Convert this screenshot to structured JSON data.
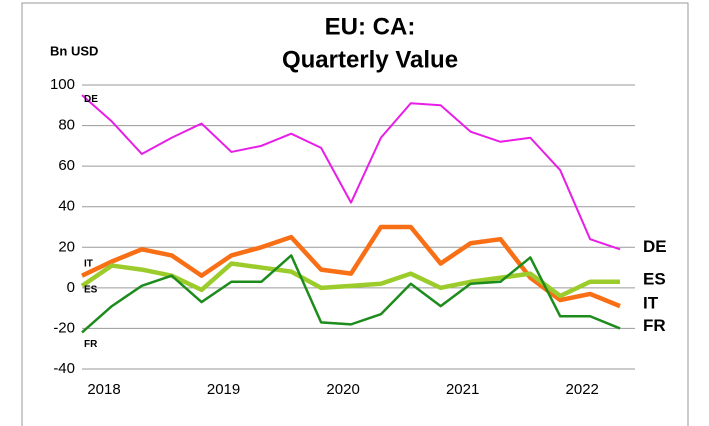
{
  "chart_data": {
    "type": "line",
    "title": [
      "EU: CA:",
      "Quarterly Value"
    ],
    "y_label": "Bn USD",
    "categories": [
      "2018",
      null,
      null,
      null,
      "2019",
      null,
      null,
      null,
      "2020",
      null,
      null,
      null,
      "2021",
      null,
      null,
      null,
      "2022",
      null,
      null
    ],
    "series": [
      {
        "name": "DE",
        "color": "#e81ee8",
        "values": [
          95,
          82,
          66,
          74,
          81,
          67,
          70,
          76,
          69,
          42,
          74,
          91,
          90,
          77,
          72,
          74,
          58,
          24,
          19
        ]
      },
      {
        "name": "IT",
        "color": "#f86f16",
        "values": [
          6,
          13,
          19,
          16,
          6,
          16,
          20,
          25,
          9,
          7,
          30,
          30,
          12,
          22,
          24,
          5,
          -6,
          -3,
          -9
        ]
      },
      {
        "name": "ES",
        "color": "#9ccc2c",
        "values": [
          1,
          11,
          9,
          6,
          -1,
          12,
          10,
          8,
          0,
          1,
          2,
          7,
          0,
          3,
          5,
          7,
          -4,
          3,
          3
        ]
      },
      {
        "name": "FR",
        "color": "#1d8c1d",
        "values": [
          -22,
          -9,
          1,
          6,
          -7,
          3,
          3,
          16,
          -17,
          -18,
          -13,
          2,
          -9,
          2,
          3,
          15,
          -14,
          -14,
          -20
        ]
      }
    ],
    "ylim": [
      -40,
      100
    ],
    "yticks": [
      -40,
      -20,
      0,
      20,
      40,
      60,
      80,
      100
    ],
    "grid": true
  }
}
